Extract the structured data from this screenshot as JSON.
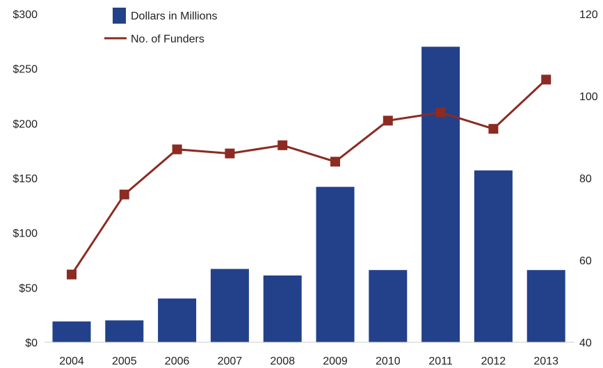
{
  "chart_data": {
    "type": "bar",
    "categories": [
      "2004",
      "2005",
      "2006",
      "2007",
      "2008",
      "2009",
      "2010",
      "2011",
      "2012",
      "2013"
    ],
    "series": [
      {
        "name": "Dollars in Millions",
        "type": "bar",
        "axis": "left",
        "color": "#22418a",
        "values": [
          19,
          20,
          40,
          67,
          61,
          142,
          66,
          270,
          157,
          66
        ]
      },
      {
        "name": "No. of Funders",
        "type": "line",
        "axis": "right",
        "color": "#8b2b22",
        "values": [
          56.5,
          76,
          87,
          86,
          88,
          84,
          94,
          96,
          92,
          104
        ]
      }
    ],
    "y_left": {
      "ylim": [
        0,
        300
      ],
      "ticks": [
        0,
        50,
        100,
        150,
        200,
        250,
        300
      ],
      "tick_labels": [
        "$0",
        "$50",
        "$100",
        "$150",
        "$200",
        "$250",
        "$300"
      ]
    },
    "y_right": {
      "ylim": [
        40,
        120
      ],
      "ticks": [
        40,
        60,
        80,
        100,
        120
      ],
      "tick_labels": [
        "40",
        "60",
        "80",
        "100",
        "120"
      ]
    },
    "legend": {
      "position": "top-left",
      "entries": [
        "Dollars in Millions",
        "No. of Funders"
      ]
    },
    "grid": false,
    "title": "",
    "xlabel": "",
    "ylabel": ""
  }
}
